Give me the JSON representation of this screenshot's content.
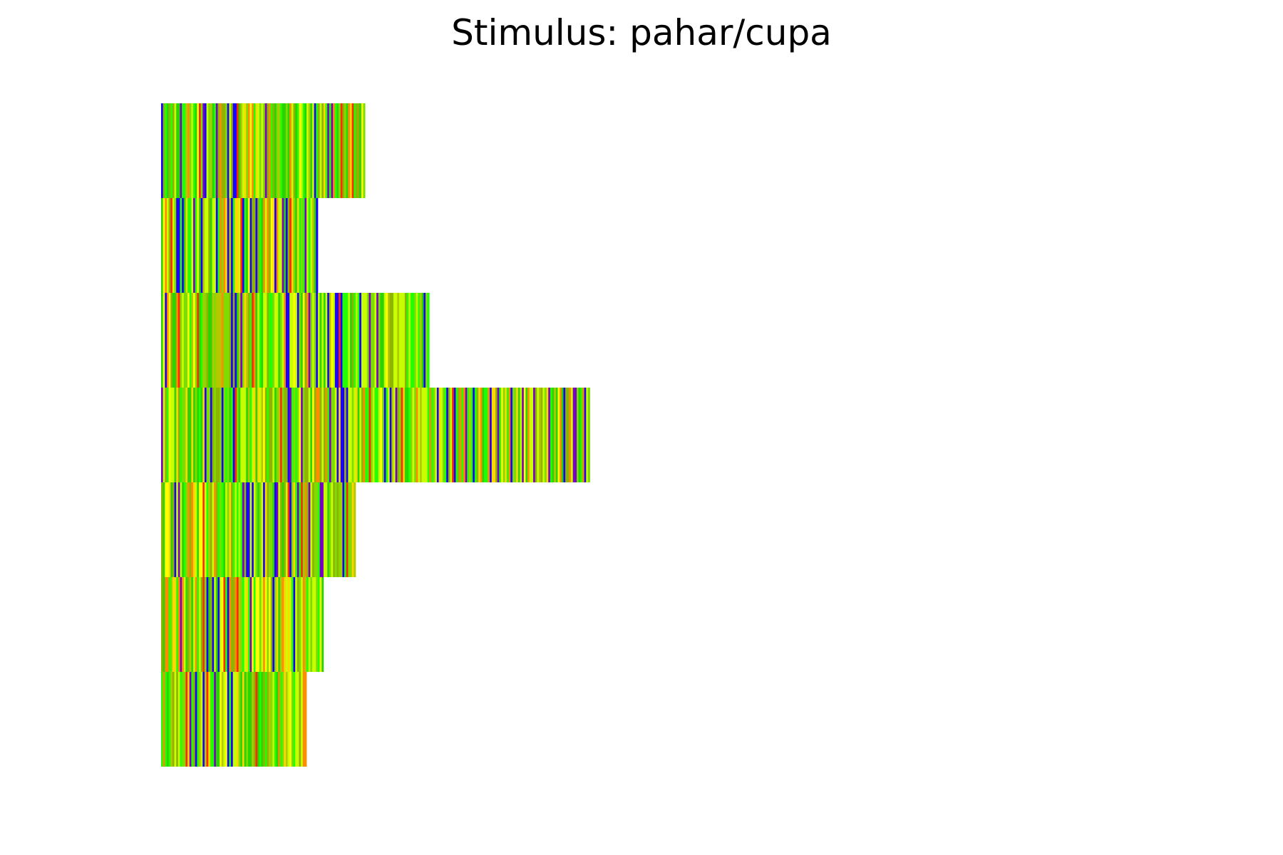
{
  "chart_data": {
    "type": "heatmap",
    "title": "Stimulus: pahar/cupa",
    "xlabel": "",
    "ylabel": "",
    "axes_visible": false,
    "row_lengths": [
      108,
      83,
      142,
      227,
      103,
      86,
      77
    ],
    "seeds": [
      11,
      23,
      37,
      41,
      53,
      67,
      79
    ],
    "palette": [
      "#1a00ff",
      "#7a00c8",
      "#ff2a00",
      "#ff8c00",
      "#ffd700",
      "#ffff00",
      "#c8ff00",
      "#7fdc00",
      "#22ff00",
      "#2ad400",
      "#8fb400",
      "#b4c800"
    ],
    "weights": [
      0.07,
      0.05,
      0.05,
      0.06,
      0.06,
      0.05,
      0.14,
      0.14,
      0.13,
      0.1,
      0.09,
      0.06
    ]
  }
}
